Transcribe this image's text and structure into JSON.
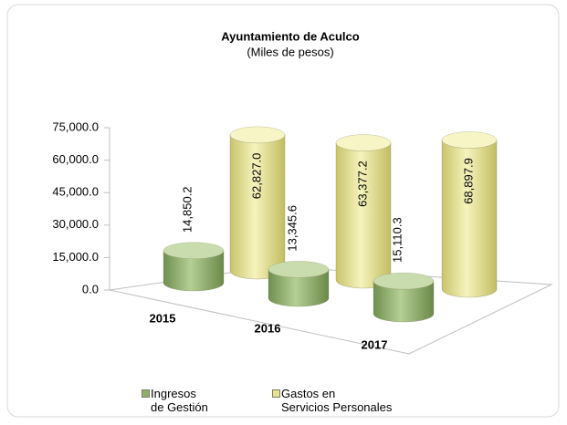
{
  "chart_data": {
    "type": "bar3d",
    "title": "Ayuntamiento de Aculco",
    "subtitle": "(Miles de pesos)",
    "categories": [
      "2015",
      "2016",
      "2017"
    ],
    "series": [
      {
        "name": "Ingresos\nde Gestión",
        "color": "#8fb06a",
        "values": [
          14850.2,
          13345.6,
          15110.3
        ],
        "value_labels": [
          "14,850.2",
          "13,345.6",
          "15,110.3"
        ]
      },
      {
        "name": "Gastos en\nServicios Personales",
        "color": "#e6e291",
        "values": [
          62827.0,
          63377.2,
          68897.9
        ],
        "value_labels": [
          "62,827.0",
          "63,377.2",
          "68,897.9"
        ]
      }
    ],
    "ylim": [
      0,
      75000
    ],
    "yticks": [
      {
        "value": 0,
        "label": "0.0"
      },
      {
        "value": 15000,
        "label": "15,000.0"
      },
      {
        "value": 30000,
        "label": "30,000.0"
      },
      {
        "value": 45000,
        "label": "45,000.0"
      },
      {
        "value": 60000,
        "label": "60,000.0"
      },
      {
        "value": 75000,
        "label": "75,000.0"
      }
    ],
    "legend": "bottom"
  }
}
